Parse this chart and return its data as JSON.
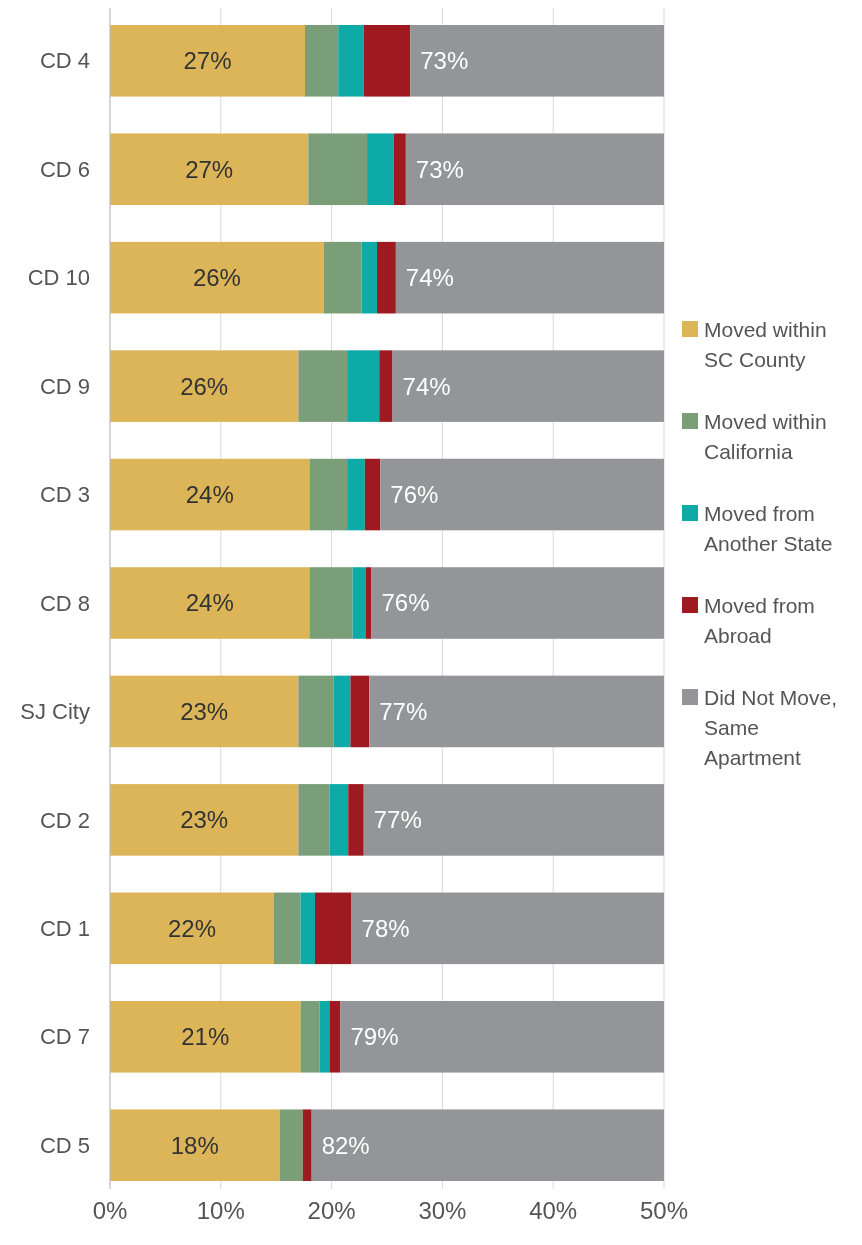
{
  "chart_data": {
    "type": "bar",
    "orientation": "horizontal",
    "stacked": true,
    "categories": [
      "CD 4",
      "CD 6",
      "CD 10",
      "CD 9",
      "CD 3",
      "CD 8",
      "SJ City",
      "CD 2",
      "CD 1",
      "CD 7",
      "CD 5"
    ],
    "series": [
      {
        "name": "Moved within SC County",
        "color": "#dcb558",
        "values": [
          17.6,
          17.9,
          19.3,
          17.0,
          18.0,
          18.0,
          17.0,
          17.0,
          14.8,
          17.2,
          15.3
        ]
      },
      {
        "name": "Moved within California",
        "color": "#7a9e78",
        "values": [
          3.0,
          5.3,
          3.4,
          4.4,
          3.4,
          3.9,
          3.2,
          2.8,
          2.4,
          1.7,
          2.1
        ]
      },
      {
        "name": "Moved from Another State",
        "color": "#0eaaa8",
        "values": [
          2.3,
          2.4,
          1.4,
          2.9,
          1.6,
          1.2,
          1.5,
          1.7,
          1.3,
          0.9,
          0
        ]
      },
      {
        "name": "Moved from Abroad",
        "color": "#9e1a20",
        "values": [
          4.2,
          1.1,
          1.7,
          1.2,
          1.4,
          0.5,
          1.7,
          1.4,
          3.3,
          1.0,
          0.8
        ]
      },
      {
        "name": "Did Not Move, Same Apartment",
        "color": "#939598",
        "values": [
          22.9,
          23.3,
          24.2,
          24.5,
          25.6,
          26.4,
          26.6,
          27.1,
          28.2,
          29.2,
          31.8
        ]
      }
    ],
    "xlim": [
      0,
      50
    ],
    "xticks": [
      {
        "value": 0,
        "label": "0%"
      },
      {
        "value": 10,
        "label": "10%"
      },
      {
        "value": 20,
        "label": "20%"
      },
      {
        "value": 30,
        "label": "30%"
      },
      {
        "value": 40,
        "label": "40%"
      },
      {
        "value": 50,
        "label": "50%"
      }
    ],
    "grid": "x",
    "legend": "right",
    "annotations": [
      "27%",
      "73%",
      "27%",
      "73%",
      "26%",
      "74%",
      "26%",
      "74%",
      "24%",
      "76%",
      "24%",
      "76%",
      "23%",
      "77%",
      "23%",
      "77%",
      "22%",
      "78%",
      "21%",
      "79%",
      "18%",
      "82%"
    ]
  }
}
